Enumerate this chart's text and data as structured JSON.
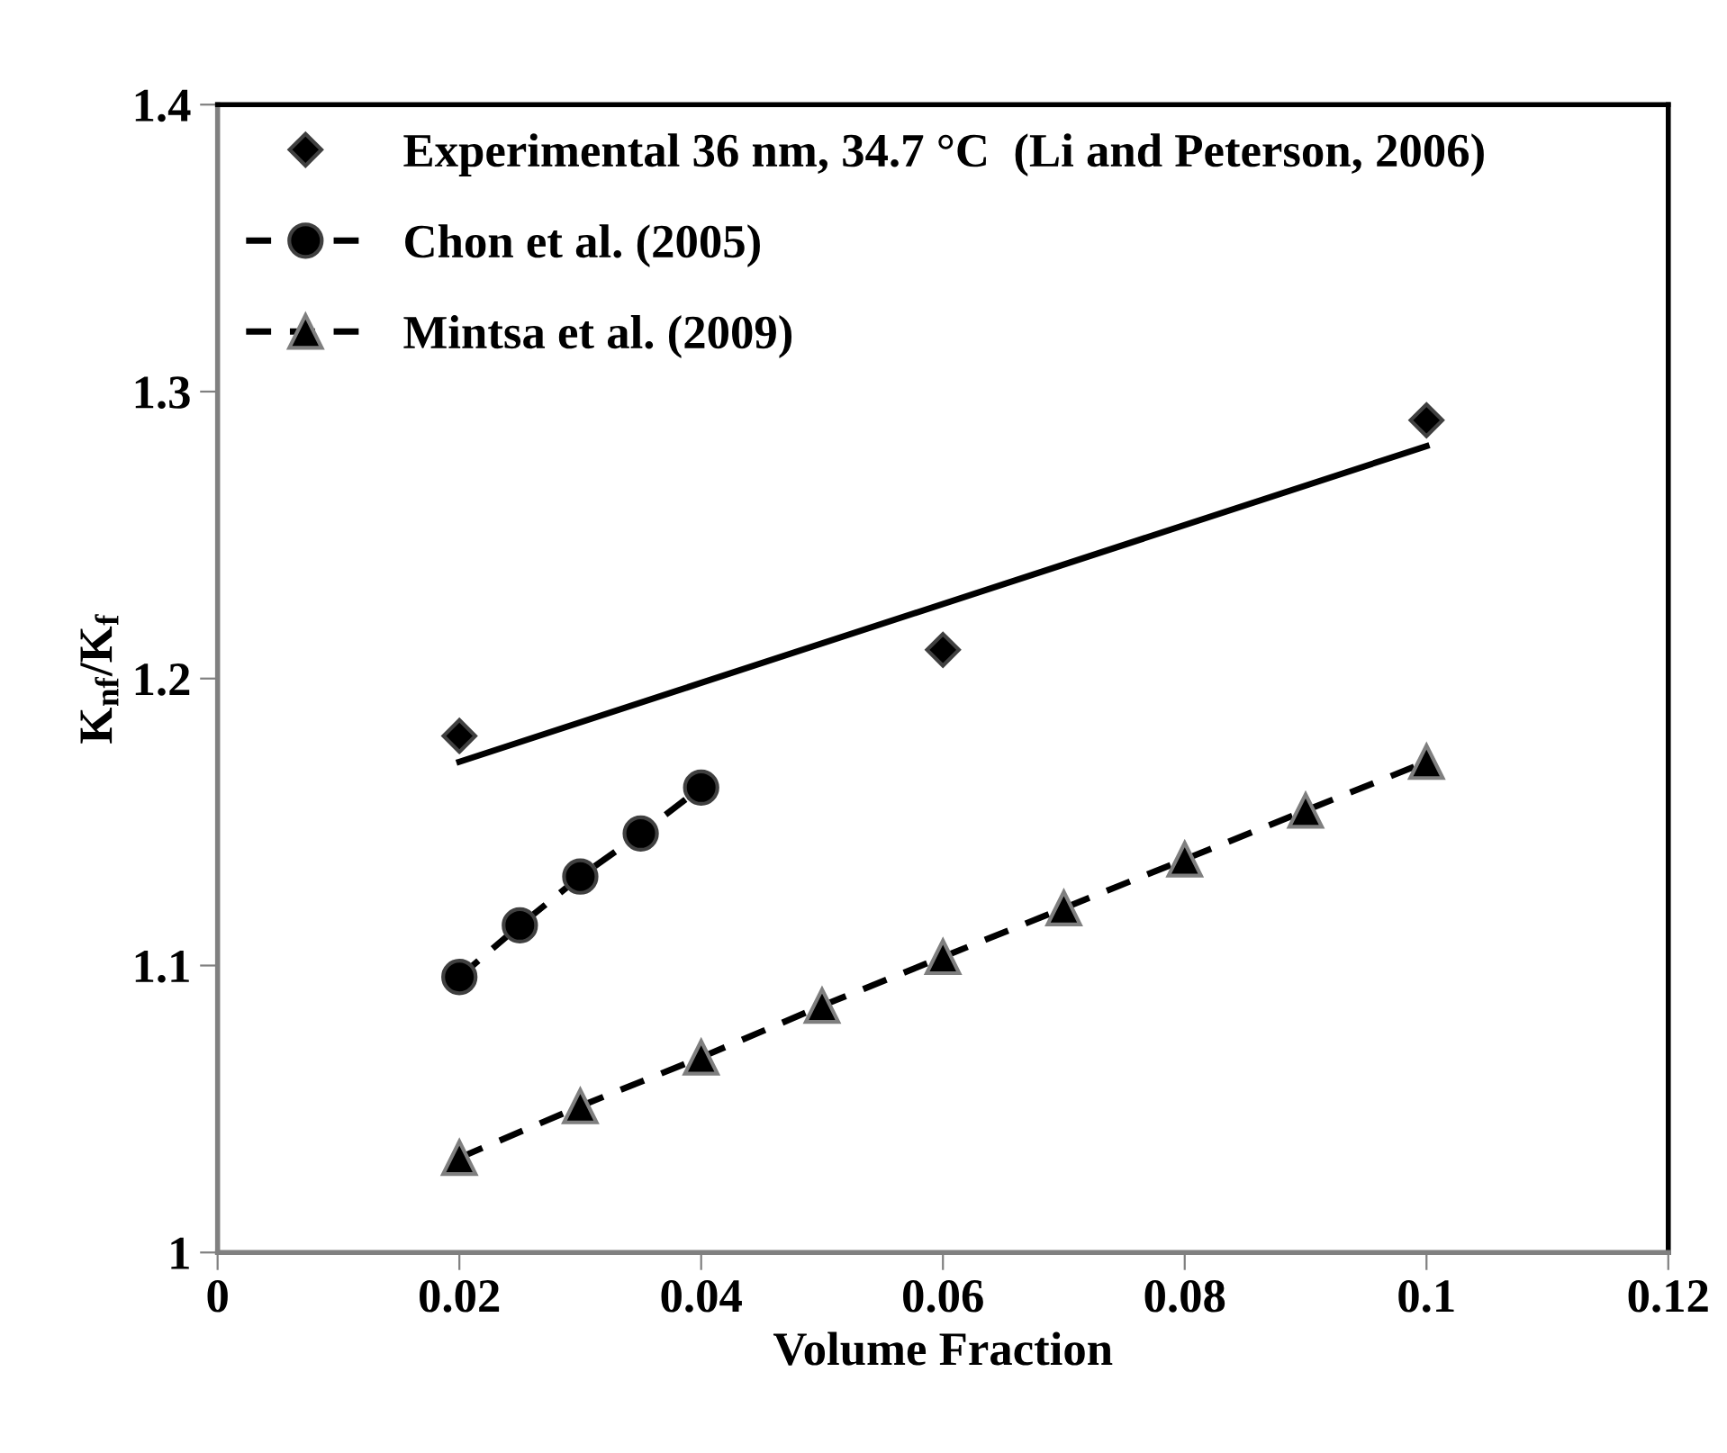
{
  "chart_data": {
    "type": "scatter",
    "xlabel": "Volume Fraction",
    "ylabel": "K$_{nf}$/K$_{f}$",
    "xlim": [
      0,
      0.12
    ],
    "xticks": [
      0,
      0.02,
      0.04,
      0.06,
      0.08,
      0.1,
      0.12
    ],
    "ylim": [
      1,
      1.4
    ],
    "yticks": [
      1,
      1.1,
      1.2,
      1.3,
      1.4
    ],
    "grid": false,
    "legend": "top left",
    "series": [
      {
        "name": "Experimental 36 nm, 34.7 °C  (Li and Peterson, 2006)",
        "marker": "diamond",
        "color": "#000000",
        "x": [
          0.02,
          0.06,
          0.1
        ],
        "values": [
          1.18,
          1.21,
          1.29
        ]
      },
      {
        "name": "Chon et al. (2005)",
        "type": "line",
        "marker": "circle",
        "line_style": "dashed",
        "color": "#000000",
        "x": [
          0.02,
          0.025,
          0.03,
          0.035,
          0.04
        ],
        "values": [
          1.096,
          1.114,
          1.131,
          1.146,
          1.162
        ]
      },
      {
        "name": "Mintsa et al. (2009)",
        "type": "line",
        "marker": "triangle",
        "line_style": "dashed",
        "color": "#000000",
        "x": [
          0.02,
          0.03,
          0.04,
          0.05,
          0.06,
          0.07,
          0.08,
          0.09,
          0.1
        ],
        "values": [
          1.033,
          1.051,
          1.068,
          1.086,
          1.103,
          1.12,
          1.137,
          1.154,
          1.171
        ]
      },
      {
        "type": "line",
        "marker": "none",
        "line_style": "solid",
        "color": "#000000",
        "x": [
          0.02,
          0.1
        ],
        "values": [
          1.171,
          1.281
        ]
      }
    ]
  }
}
